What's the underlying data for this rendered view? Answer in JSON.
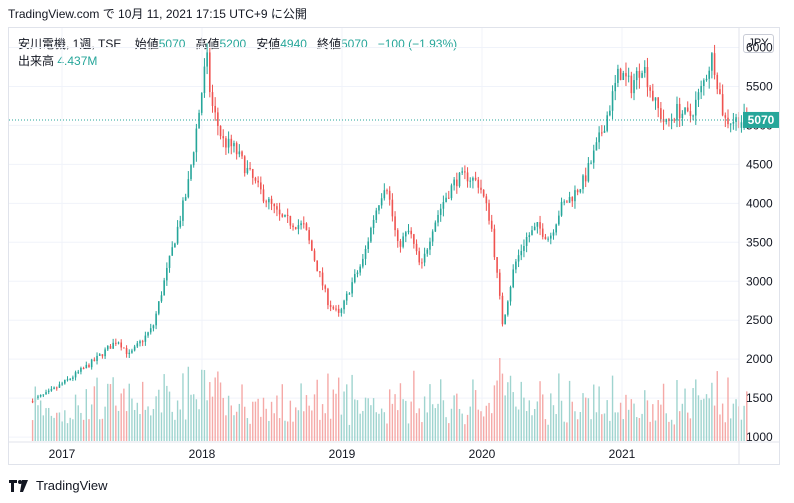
{
  "header": {
    "watermark_line": "TradingView.com で 10月 11, 2021 17:15 UTC+9 に公開"
  },
  "legend": {
    "symbol": "安川電機, 1週, TSE",
    "open_label": "始値",
    "open_value": "5070",
    "high_label": "高値",
    "high_value": "5200",
    "low_label": "安値",
    "low_value": "4940",
    "close_label": "終値",
    "close_value": "5070",
    "change": "−100 (−1.93%)",
    "volume_label": "出来高",
    "volume_value": "4.437M"
  },
  "currency_button": "JPY",
  "footer": {
    "brand": "TradingView"
  },
  "colors": {
    "up": "#26a69a",
    "down": "#ef5350",
    "up_vol": "#9fd4cf",
    "down_vol": "#f5a9a7",
    "price_tag": "#26a69a",
    "grid": "#f0f3fa"
  },
  "chart_data": {
    "type": "candlestick",
    "interval": "weekly",
    "price_axis": {
      "min": 950,
      "max": 6250,
      "ticks": [
        1000,
        1500,
        2000,
        2500,
        3000,
        3500,
        4000,
        4500,
        5000,
        5500,
        6000
      ]
    },
    "time_axis": {
      "ticks": [
        "2017",
        "2018",
        "2019",
        "2020",
        "2021"
      ]
    },
    "last_price": 5070,
    "anchors": [
      [
        "2016-10",
        1430
      ],
      [
        "2016-12",
        1560
      ],
      [
        "2017-02",
        1760
      ],
      [
        "2017-04",
        1980
      ],
      [
        "2017-06",
        2250
      ],
      [
        "2017-07",
        2050
      ],
      [
        "2017-09",
        2400
      ],
      [
        "2017-10",
        3000
      ],
      [
        "2017-11",
        3600
      ],
      [
        "2017-12",
        4200
      ],
      [
        "2018-01",
        5200
      ],
      [
        "2018-01-20",
        5900
      ],
      [
        "2018-02",
        5300
      ],
      [
        "2018-03",
        4800
      ],
      [
        "2018-04",
        4700
      ],
      [
        "2018-06",
        4200
      ],
      [
        "2018-08",
        3800
      ],
      [
        "2018-10",
        3700
      ],
      [
        "2018-12",
        2750
      ],
      [
        "2019-01",
        2550
      ],
      [
        "2019-02",
        2950
      ],
      [
        "2019-03",
        3250
      ],
      [
        "2019-04",
        3850
      ],
      [
        "2019-05",
        4300
      ],
      [
        "2019-06",
        3450
      ],
      [
        "2019-07",
        3650
      ],
      [
        "2019-08",
        3150
      ],
      [
        "2019-09",
        3700
      ],
      [
        "2019-10",
        4050
      ],
      [
        "2019-11",
        4300
      ],
      [
        "2019-12",
        4350
      ],
      [
        "2020-01",
        4250
      ],
      [
        "2020-02",
        3750
      ],
      [
        "2020-03",
        2450
      ],
      [
        "2020-04",
        3200
      ],
      [
        "2020-05",
        3550
      ],
      [
        "2020-06",
        3700
      ],
      [
        "2020-07",
        3550
      ],
      [
        "2020-08",
        3950
      ],
      [
        "2020-09",
        4100
      ],
      [
        "2020-10",
        4300
      ],
      [
        "2020-11",
        4700
      ],
      [
        "2020-12",
        5150
      ],
      [
        "2021-01",
        5700
      ],
      [
        "2021-02",
        5500
      ],
      [
        "2021-03",
        5800
      ],
      [
        "2021-04",
        5300
      ],
      [
        "2021-05",
        5000
      ],
      [
        "2021-06",
        5200
      ],
      [
        "2021-07",
        5100
      ],
      [
        "2021-08",
        5450
      ],
      [
        "2021-09",
        5900
      ],
      [
        "2021-10",
        5070
      ]
    ],
    "volume_range": {
      "min": 1.0,
      "max": 4.5
    }
  }
}
